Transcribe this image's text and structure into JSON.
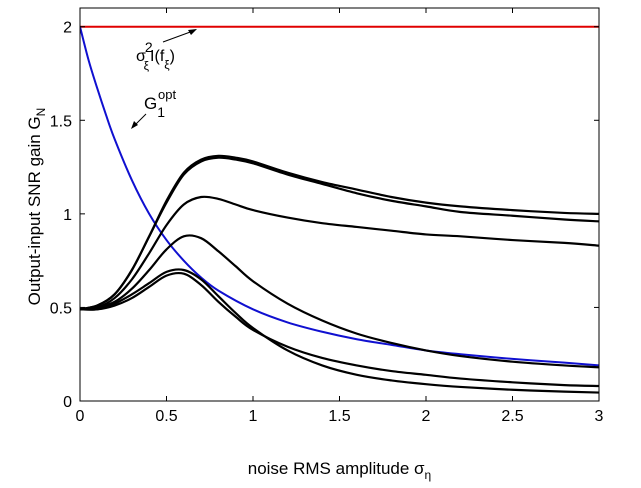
{
  "chart_data": {
    "type": "line",
    "title": "",
    "xlabel": "noise RMS amplitude σ",
    "xlabel_sub": "η",
    "ylabel": "Output-input SNR gain G",
    "ylabel_sub": "N",
    "xlim": [
      0,
      3
    ],
    "ylim": [
      0,
      2.1
    ],
    "xticks": [
      0,
      0.5,
      1,
      1.5,
      2,
      2.5,
      3
    ],
    "xtick_labels": [
      "0",
      "0.5",
      "1",
      "1.5",
      "2",
      "2.5",
      "3"
    ],
    "yticks": [
      0,
      0.5,
      1,
      1.5,
      2
    ],
    "ytick_labels": [
      "0",
      "0.5",
      "1",
      "1.5",
      "2"
    ],
    "grid": false,
    "legend": "none",
    "annotations": [
      {
        "base": "σ",
        "sup": "2",
        "sub": "ξ",
        "rest": "I(f",
        "sub2": "ξ",
        "close": ")"
      },
      {
        "base": "G",
        "sub": "1",
        "sup": "opt"
      }
    ],
    "series": [
      {
        "color": "#e00000",
        "x": [
          0,
          3
        ],
        "y": [
          2.0,
          2.0
        ]
      },
      {
        "color": "#1010d0",
        "x": [
          0,
          0.05,
          0.1,
          0.15,
          0.2,
          0.3,
          0.4,
          0.5,
          0.6,
          0.7,
          0.8,
          1.0,
          1.2,
          1.4,
          1.6,
          1.8,
          2.0,
          2.2,
          2.5,
          2.8,
          3.0
        ],
        "y": [
          2.0,
          1.82,
          1.67,
          1.53,
          1.4,
          1.18,
          1.0,
          0.86,
          0.75,
          0.66,
          0.59,
          0.49,
          0.42,
          0.37,
          0.33,
          0.3,
          0.27,
          0.25,
          0.225,
          0.205,
          0.19
        ]
      },
      {
        "color": "#000000",
        "x": [
          0,
          0.1,
          0.2,
          0.3,
          0.4,
          0.5,
          0.6,
          0.7,
          0.8,
          0.9,
          1.0,
          1.2,
          1.4,
          1.6,
          1.8,
          2.0,
          2.2,
          2.5,
          2.8,
          3.0
        ],
        "y": [
          0.49,
          0.51,
          0.57,
          0.7,
          0.88,
          1.07,
          1.22,
          1.29,
          1.31,
          1.3,
          1.28,
          1.22,
          1.17,
          1.13,
          1.09,
          1.06,
          1.04,
          1.02,
          1.005,
          1.0
        ]
      },
      {
        "color": "#000000",
        "x": [
          0,
          0.1,
          0.2,
          0.3,
          0.4,
          0.5,
          0.6,
          0.7,
          0.8,
          0.9,
          1.0,
          1.2,
          1.4,
          1.6,
          1.8,
          2.0,
          2.2,
          2.5,
          2.8,
          3.0
        ],
        "y": [
          0.49,
          0.51,
          0.57,
          0.7,
          0.88,
          1.06,
          1.21,
          1.28,
          1.3,
          1.29,
          1.27,
          1.21,
          1.16,
          1.11,
          1.07,
          1.04,
          1.01,
          0.99,
          0.97,
          0.96
        ]
      },
      {
        "color": "#000000",
        "x": [
          0,
          0.1,
          0.2,
          0.3,
          0.4,
          0.5,
          0.6,
          0.7,
          0.8,
          0.9,
          1.0,
          1.2,
          1.4,
          1.6,
          1.8,
          2.0,
          2.2,
          2.5,
          2.8,
          3.0
        ],
        "y": [
          0.49,
          0.5,
          0.55,
          0.65,
          0.79,
          0.94,
          1.05,
          1.09,
          1.08,
          1.05,
          1.02,
          0.98,
          0.95,
          0.93,
          0.91,
          0.89,
          0.88,
          0.86,
          0.845,
          0.83
        ]
      },
      {
        "color": "#000000",
        "x": [
          0,
          0.1,
          0.2,
          0.3,
          0.4,
          0.5,
          0.6,
          0.7,
          0.8,
          0.9,
          1.0,
          1.2,
          1.4,
          1.6,
          1.8,
          2.0,
          2.2,
          2.5,
          2.8,
          3.0
        ],
        "y": [
          0.49,
          0.5,
          0.53,
          0.6,
          0.7,
          0.81,
          0.88,
          0.87,
          0.8,
          0.72,
          0.64,
          0.52,
          0.43,
          0.36,
          0.31,
          0.27,
          0.24,
          0.21,
          0.19,
          0.18
        ]
      },
      {
        "color": "#000000",
        "x": [
          0,
          0.1,
          0.2,
          0.3,
          0.4,
          0.5,
          0.6,
          0.7,
          0.8,
          0.9,
          1.0,
          1.2,
          1.4,
          1.6,
          1.8,
          2.0,
          2.2,
          2.5,
          2.8,
          3.0
        ],
        "y": [
          0.49,
          0.49,
          0.51,
          0.55,
          0.61,
          0.67,
          0.68,
          0.62,
          0.53,
          0.45,
          0.38,
          0.29,
          0.23,
          0.19,
          0.16,
          0.14,
          0.12,
          0.1,
          0.085,
          0.08
        ]
      },
      {
        "color": "#000000",
        "x": [
          0,
          0.1,
          0.2,
          0.3,
          0.4,
          0.5,
          0.6,
          0.7,
          0.8,
          0.9,
          1.0,
          1.2,
          1.4,
          1.6,
          1.8,
          2.0,
          2.2,
          2.5,
          2.8,
          3.0
        ],
        "y": [
          0.49,
          0.49,
          0.52,
          0.57,
          0.63,
          0.69,
          0.7,
          0.65,
          0.56,
          0.47,
          0.39,
          0.27,
          0.19,
          0.14,
          0.11,
          0.09,
          0.075,
          0.06,
          0.05,
          0.045
        ]
      }
    ]
  }
}
